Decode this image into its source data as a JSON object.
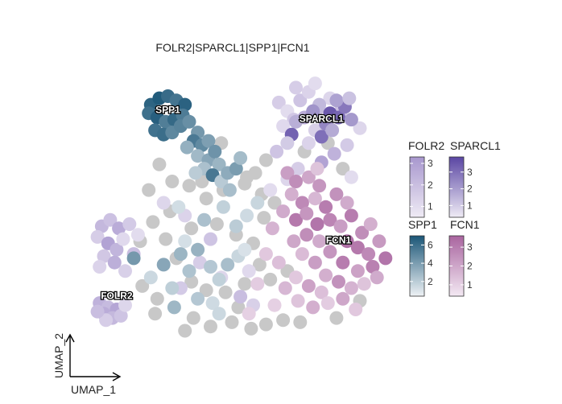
{
  "chart_data": {
    "type": "scatter",
    "title": "FOLR2|SPARCL1|SPP1|FCN1",
    "xlabel": "UMAP_1",
    "ylabel": "UMAP_2",
    "grid": false,
    "cluster_labels": [
      {
        "text": "SPP1",
        "x": -3.0,
        "y": 6.2
      },
      {
        "text": "SPARCL1",
        "x": 4.2,
        "y": 5.8
      },
      {
        "text": "FCN1",
        "x": 5.0,
        "y": 0.1
      },
      {
        "text": "FOLR2",
        "x": -5.4,
        "y": -2.5
      }
    ],
    "legends": [
      {
        "name": "FOLR2",
        "colors": [
          "#efebf5",
          "#a897ce"
        ],
        "range": [
          0.5,
          3.3
        ],
        "ticks": [
          1,
          2,
          3
        ],
        "position": "right"
      },
      {
        "name": "SPARCL1",
        "colors": [
          "#efebf5",
          "#5a46a3"
        ],
        "range": [
          0.3,
          3.9
        ],
        "ticks": [
          1,
          2,
          3
        ],
        "position": "right"
      },
      {
        "name": "SPP1",
        "colors": [
          "#eef2f5",
          "#1b5677"
        ],
        "range": [
          0.4,
          7.0
        ],
        "ticks": [
          2,
          4,
          6
        ],
        "position": "right"
      },
      {
        "name": "FCN1",
        "colors": [
          "#f3e9f3",
          "#a9649f"
        ],
        "range": [
          0.4,
          3.6
        ],
        "ticks": [
          1,
          2,
          3
        ],
        "position": "right"
      }
    ],
    "na_color": "#c8c8c8",
    "series": [
      {
        "name": "FOLR2",
        "points": [
          [
            -6.2,
            -2.7,
            2.4
          ],
          [
            -5.8,
            -2.9,
            2.1
          ],
          [
            -5.4,
            -3.0,
            2.8
          ],
          [
            -6.0,
            -3.2,
            2.6
          ],
          [
            -5.6,
            -3.4,
            2.2
          ],
          [
            -5.2,
            -3.3,
            1.8
          ],
          [
            -5.9,
            -3.5,
            1.5
          ],
          [
            -6.3,
            -3.1,
            2.0
          ],
          [
            -5.0,
            -2.8,
            1.2
          ],
          [
            -6.1,
            0.9,
            2.2
          ],
          [
            -5.7,
            1.2,
            1.9
          ],
          [
            -5.3,
            0.8,
            2.6
          ],
          [
            -6.3,
            0.4,
            1.5
          ],
          [
            -5.8,
            0.1,
            2.9
          ],
          [
            -5.4,
            -0.2,
            2.3
          ],
          [
            -6.0,
            -0.5,
            1.7
          ],
          [
            -5.5,
            -0.8,
            2.5
          ],
          [
            -6.2,
            -1.0,
            1.3
          ],
          [
            -5.1,
            0.3,
            1.1
          ],
          [
            -4.8,
            1.0,
            1.6
          ],
          [
            -4.6,
            -0.4,
            2.0
          ],
          [
            -5.0,
            -1.2,
            1.4
          ],
          [
            -4.4,
            0.5,
            1.0
          ],
          [
            -1.5,
            -0.8,
            1.5
          ],
          [
            -0.5,
            -1.5,
            1.2
          ],
          [
            0.4,
            -2.4,
            2.0
          ],
          [
            1.0,
            -2.8,
            1.4
          ],
          [
            -3.2,
            2.0,
            1.2
          ],
          [
            -2.4,
            -2.0,
            1.6
          ],
          [
            1.8,
            2.6,
            1.0
          ],
          [
            2.2,
            6.7,
            1.5
          ],
          [
            2.6,
            6.3,
            1.0
          ],
          [
            3.2,
            6.8,
            1.8
          ],
          [
            3.6,
            7.2,
            1.3
          ],
          [
            4.0,
            6.4,
            2.2
          ],
          [
            2.9,
            5.9,
            1.7
          ],
          [
            3.4,
            6.0,
            2.6
          ],
          [
            4.6,
            6.9,
            1.2
          ],
          [
            5.1,
            6.3,
            1.9
          ],
          [
            2.4,
            5.6,
            1.1
          ],
          [
            3.9,
            5.4,
            1.4
          ],
          [
            4.5,
            5.9,
            2.0
          ],
          [
            3.0,
            7.4,
            1.5
          ],
          [
            3.9,
            7.6,
            1.0
          ],
          [
            2.1,
            4.4,
            1.8
          ],
          [
            3.6,
            4.8,
            1.3
          ],
          [
            4.8,
            4.3,
            2.4
          ],
          [
            5.4,
            4.7,
            1.6
          ],
          [
            6.0,
            5.5,
            1.2
          ],
          [
            5.6,
            3.2,
            1.0
          ],
          [
            4.2,
            3.9,
            2.9
          ],
          [
            3.1,
            3.6,
            1.5
          ],
          [
            2.6,
            3.1,
            1.2
          ],
          [
            -2.2,
            1.4,
            1.3
          ],
          [
            -1.0,
            0.3,
            1.8
          ],
          [
            0.8,
            -1.2,
            1.1
          ]
        ]
      },
      {
        "name": "SPARCL1",
        "points": [
          [
            4.6,
            6.2,
            3.5
          ],
          [
            5.0,
            6.0,
            3.2
          ],
          [
            5.3,
            6.5,
            2.8
          ],
          [
            4.4,
            5.7,
            2.5
          ],
          [
            5.6,
            5.9,
            2.1
          ],
          [
            4.9,
            6.8,
            1.9
          ],
          [
            4.1,
            6.6,
            1.4
          ],
          [
            3.0,
            5.8,
            1.6
          ],
          [
            2.8,
            5.2,
            3.3
          ],
          [
            4.2,
            5.1,
            3.0
          ],
          [
            3.8,
            6.3,
            2.2
          ],
          [
            5.5,
            6.9,
            1.2
          ],
          [
            2.6,
            4.8,
            1.0
          ],
          [
            4.7,
            5.4,
            1.7
          ]
        ]
      },
      {
        "name": "SPP1",
        "points": [
          [
            -3.8,
            6.6,
            6.4
          ],
          [
            -3.4,
            6.9,
            6.8
          ],
          [
            -3.0,
            7.0,
            6.1
          ],
          [
            -2.6,
            6.8,
            5.7
          ],
          [
            -2.2,
            6.6,
            6.5
          ],
          [
            -3.9,
            6.2,
            5.9
          ],
          [
            -3.5,
            6.0,
            6.6
          ],
          [
            -3.1,
            5.8,
            5.3
          ],
          [
            -2.7,
            5.9,
            6.2
          ],
          [
            -2.3,
            6.1,
            5.4
          ],
          [
            -3.6,
            5.4,
            5.8
          ],
          [
            -3.2,
            5.2,
            6.0
          ],
          [
            -2.8,
            5.3,
            4.9
          ],
          [
            -2.4,
            5.6,
            5.1
          ],
          [
            -2.0,
            5.8,
            4.6
          ],
          [
            -1.6,
            5.3,
            4.2
          ],
          [
            -1.8,
            4.9,
            5.5
          ],
          [
            -1.4,
            4.7,
            4.8
          ],
          [
            -1.1,
            4.9,
            3.9
          ],
          [
            -2.1,
            4.6,
            3.2
          ],
          [
            -1.6,
            4.2,
            2.8
          ],
          [
            -1.1,
            4.0,
            3.6
          ],
          [
            -0.8,
            4.4,
            4.4
          ],
          [
            -0.6,
            3.8,
            3.0
          ],
          [
            -1.3,
            3.6,
            2.5
          ],
          [
            -0.9,
            3.3,
            5.6
          ],
          [
            -0.5,
            3.0,
            2.1
          ],
          [
            -0.2,
            3.4,
            3.4
          ],
          [
            0.2,
            3.6,
            4.0
          ],
          [
            -0.1,
            2.6,
            2.6
          ],
          [
            -1.7,
            3.4,
            2.0
          ],
          [
            0.4,
            4.1,
            2.7
          ],
          [
            -4.6,
            -0.6,
            4.2
          ],
          [
            -3.2,
            -0.9,
            3.6
          ],
          [
            -2.4,
            -0.4,
            3.0
          ],
          [
            -2.0,
            -1.2,
            2.4
          ],
          [
            -1.6,
            -0.2,
            3.1
          ],
          [
            -1.0,
            -1.0,
            2.2
          ],
          [
            -0.6,
            -1.6,
            1.8
          ],
          [
            -0.2,
            -0.9,
            2.6
          ],
          [
            0.3,
            -0.5,
            1.6
          ],
          [
            -2.8,
            -2.0,
            1.9
          ],
          [
            -1.6,
            -2.5,
            2.2
          ],
          [
            -0.9,
            -2.7,
            1.4
          ],
          [
            -1.3,
            1.2,
            2.5
          ],
          [
            -0.4,
            1.8,
            1.8
          ],
          [
            0.7,
            1.4,
            1.4
          ],
          [
            -2.7,
            -2.9,
            2.9
          ],
          [
            -2.2,
            0.2,
            1.2
          ],
          [
            0.2,
            0.9,
            2.0
          ],
          [
            -3.8,
            -1.5,
            1.5
          ],
          [
            -2.5,
            1.8,
            1.3
          ],
          [
            1.2,
            2.0,
            1.6
          ],
          [
            -0.6,
            -3.2,
            1.5
          ],
          [
            0.6,
            -0.2,
            1.1
          ]
        ]
      },
      {
        "name": "FCN1",
        "points": [
          [
            2.6,
            3.4,
            2.2
          ],
          [
            3.0,
            3.0,
            2.6
          ],
          [
            3.6,
            3.2,
            2.0
          ],
          [
            4.1,
            2.8,
            2.4
          ],
          [
            2.8,
            2.4,
            1.8
          ],
          [
            3.3,
            2.0,
            2.7
          ],
          [
            3.9,
            2.2,
            1.6
          ],
          [
            4.4,
            1.8,
            3.0
          ],
          [
            4.9,
            2.4,
            2.5
          ],
          [
            2.4,
            1.6,
            1.9
          ],
          [
            3.0,
            1.2,
            3.1
          ],
          [
            3.5,
            1.5,
            2.4
          ],
          [
            4.0,
            1.0,
            3.2
          ],
          [
            4.6,
            1.2,
            2.8
          ],
          [
            5.1,
            0.9,
            2.2
          ],
          [
            5.6,
            1.4,
            3.0
          ],
          [
            6.1,
            0.6,
            2.6
          ],
          [
            6.5,
            1.0,
            1.8
          ],
          [
            5.4,
            0.2,
            3.3
          ],
          [
            5.9,
            -0.1,
            3.1
          ],
          [
            6.4,
            -0.4,
            2.7
          ],
          [
            6.9,
            0.2,
            2.3
          ],
          [
            7.2,
            -0.6,
            3.2
          ],
          [
            6.6,
            -1.0,
            2.9
          ],
          [
            5.9,
            -1.2,
            2.1
          ],
          [
            5.2,
            -0.8,
            3.0
          ],
          [
            4.6,
            -0.3,
            2.4
          ],
          [
            4.1,
            0.2,
            1.9
          ],
          [
            3.5,
            0.5,
            2.6
          ],
          [
            2.9,
            0.2,
            2.0
          ],
          [
            3.3,
            -0.4,
            1.5
          ],
          [
            3.9,
            -0.8,
            2.2
          ],
          [
            4.4,
            -1.4,
            1.8
          ],
          [
            5.0,
            -1.7,
            2.5
          ],
          [
            5.6,
            -2.0,
            1.7
          ],
          [
            6.2,
            -1.8,
            1.3
          ],
          [
            6.8,
            -1.5,
            1.9
          ],
          [
            4.2,
            -2.2,
            1.4
          ],
          [
            3.6,
            -1.9,
            2.1
          ],
          [
            3.0,
            -1.5,
            1.2
          ],
          [
            2.5,
            -2.0,
            1.6
          ],
          [
            3.1,
            -2.6,
            1.3
          ],
          [
            3.8,
            -2.9,
            1.8
          ],
          [
            4.5,
            -2.7,
            1.1
          ],
          [
            5.2,
            -2.5,
            2.0
          ],
          [
            5.8,
            -3.0,
            1.2
          ],
          [
            2.2,
            -0.8,
            1.4
          ],
          [
            1.6,
            -0.4,
            1.2
          ],
          [
            1.9,
            0.8,
            1.7
          ],
          [
            2.0,
            -2.8,
            1.0
          ],
          [
            4.0,
            3.6,
            1.3
          ],
          [
            5.4,
            2.0,
            1.9
          ],
          [
            1.2,
            -1.8,
            1.1
          ],
          [
            0.8,
            -3.2,
            1.0
          ]
        ]
      },
      {
        "name": "none",
        "points": [
          [
            -3.4,
            3.8
          ],
          [
            -2.8,
            3.0
          ],
          [
            -3.9,
            2.6
          ],
          [
            -2.0,
            2.8
          ],
          [
            -1.2,
            2.2
          ],
          [
            -2.9,
            1.6
          ],
          [
            -3.7,
            1.1
          ],
          [
            -1.9,
            0.8
          ],
          [
            -0.7,
            1.0
          ],
          [
            -3.1,
            0.3
          ],
          [
            -2.6,
            -0.6
          ],
          [
            -4.2,
            -1.9
          ],
          [
            -3.5,
            -2.5
          ],
          [
            -1.9,
            -1.7
          ],
          [
            -1.2,
            -2.1
          ],
          [
            -0.3,
            -2.2
          ],
          [
            0.6,
            -1.8
          ],
          [
            1.3,
            -0.9
          ],
          [
            1.0,
            0.1
          ],
          [
            0.2,
            0.5
          ],
          [
            -0.4,
            2.6
          ],
          [
            0.6,
            2.9
          ],
          [
            1.1,
            3.4
          ],
          [
            1.5,
            1.3
          ],
          [
            1.8,
            -1.6
          ],
          [
            2.4,
            -3.5
          ],
          [
            1.6,
            -3.7
          ],
          [
            0.9,
            -3.9
          ],
          [
            0.0,
            -3.6
          ],
          [
            -1.0,
            -3.8
          ],
          [
            -1.8,
            -3.4
          ],
          [
            -2.2,
            -4.0
          ],
          [
            3.2,
            -3.6
          ],
          [
            4.9,
            -3.4
          ],
          [
            2.6,
            -1.2
          ],
          [
            3.4,
            4.4
          ],
          [
            4.5,
            4.8
          ],
          [
            5.2,
            3.6
          ],
          [
            1.6,
            4.0
          ],
          [
            -0.5,
            4.8
          ],
          [
            0.7,
            3.2
          ],
          [
            2.0,
            2.0
          ],
          [
            -4.3,
            0.2
          ],
          [
            -3.6,
            -3.2
          ],
          [
            -1.4,
            3.0
          ],
          [
            0.3,
            -2.9
          ],
          [
            1.4,
            2.4
          ],
          [
            6.0,
            -2.6
          ]
        ]
      }
    ]
  }
}
